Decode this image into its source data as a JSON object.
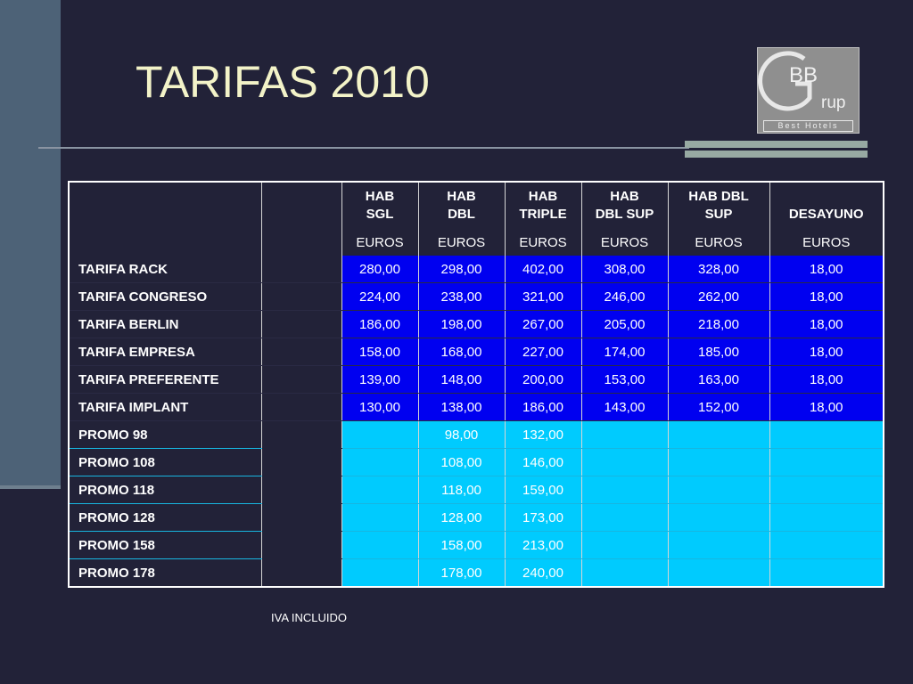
{
  "title": "TARIFAS 2010",
  "logo": {
    "letters_top": "BB",
    "letter_big": "G",
    "letters_rest": "rup",
    "tagline": "Best Hotels"
  },
  "table": {
    "columns": [
      {
        "line1": "HAB",
        "line2": "SGL"
      },
      {
        "line1": "HAB",
        "line2": "DBL"
      },
      {
        "line1": "HAB",
        "line2": "TRIPLE"
      },
      {
        "line1": "HAB",
        "line2": "DBL SUP"
      },
      {
        "line1": "HAB DBL",
        "line2": "SUP"
      },
      {
        "line1": "",
        "line2": "DESAYUNO"
      }
    ],
    "units": [
      "EUROS",
      "EUROS",
      "EUROS",
      "EUROS",
      "EUROS",
      "EUROS"
    ],
    "rows": [
      {
        "name": "TARIFA RACK",
        "values": [
          "280,00",
          "298,00",
          "402,00",
          "308,00",
          "328,00",
          "18,00"
        ]
      },
      {
        "name": "TARIFA CONGRESO",
        "values": [
          "224,00",
          "238,00",
          "321,00",
          "246,00",
          "262,00",
          "18,00"
        ]
      },
      {
        "name": "TARIFA BERLIN",
        "values": [
          "186,00",
          "198,00",
          "267,00",
          "205,00",
          "218,00",
          "18,00"
        ]
      },
      {
        "name": "TARIFA EMPRESA",
        "values": [
          "158,00",
          "168,00",
          "227,00",
          "174,00",
          "185,00",
          "18,00"
        ]
      },
      {
        "name": "TARIFA PREFERENTE",
        "values": [
          "139,00",
          "148,00",
          "200,00",
          "153,00",
          "163,00",
          "18,00"
        ]
      },
      {
        "name": "TARIFA IMPLANT",
        "values": [
          "130,00",
          "138,00",
          "186,00",
          "143,00",
          "152,00",
          "18,00"
        ]
      },
      {
        "name": "PROMO 98",
        "values": [
          "",
          "98,00",
          "132,00",
          "",
          "",
          ""
        ]
      },
      {
        "name": "PROMO 108",
        "values": [
          "",
          "108,00",
          "146,00",
          "",
          "",
          ""
        ]
      },
      {
        "name": "PROMO 118",
        "values": [
          "",
          "118,00",
          "159,00",
          "",
          "",
          ""
        ]
      },
      {
        "name": "PROMO 128",
        "values": [
          "",
          "128,00",
          "173,00",
          "",
          "",
          ""
        ]
      },
      {
        "name": "PROMO 158",
        "values": [
          "",
          "158,00",
          "213,00",
          "",
          "",
          ""
        ]
      },
      {
        "name": "PROMO 178",
        "values": [
          "",
          "178,00",
          "240,00",
          "",
          "",
          ""
        ]
      }
    ]
  },
  "footnote": "IVA INCLUIDO",
  "colors": {
    "background": "#222238",
    "title": "#f3f3c8",
    "tarifa_fill": "#0000f0",
    "promo_fill": "#00cbfe"
  }
}
